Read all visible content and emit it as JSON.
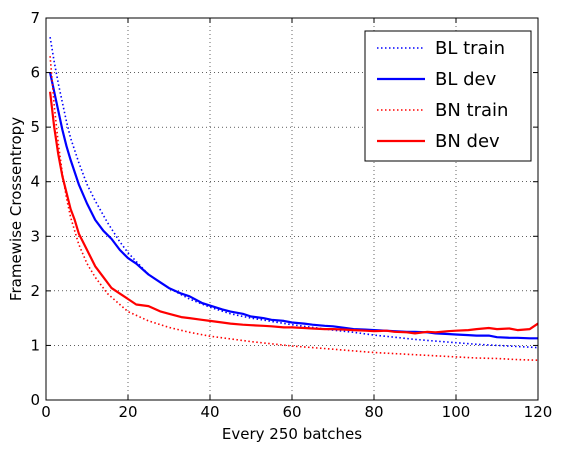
{
  "chart_data": {
    "type": "line",
    "title": "",
    "xlabel": "Every 250 batches",
    "ylabel": "Framewise Crossentropy",
    "xlim": [
      0,
      120
    ],
    "ylim": [
      0,
      7
    ],
    "xticks": [
      0,
      20,
      40,
      60,
      80,
      100,
      120
    ],
    "yticks": [
      0,
      1,
      2,
      3,
      4,
      5,
      6,
      7
    ],
    "grid": true,
    "legend_position": "top-right",
    "series": [
      {
        "name": "BL train",
        "color": "#0000ff",
        "style": "dotted",
        "x": [
          1,
          2,
          3,
          4,
          5,
          6,
          8,
          10,
          12,
          15,
          18,
          20,
          25,
          30,
          35,
          40,
          45,
          50,
          55,
          60,
          65,
          70,
          75,
          80,
          85,
          90,
          95,
          100,
          105,
          110,
          115,
          120
        ],
        "y": [
          6.65,
          6.2,
          5.8,
          5.45,
          5.1,
          4.8,
          4.35,
          3.95,
          3.65,
          3.25,
          2.9,
          2.7,
          2.3,
          2.05,
          1.85,
          1.7,
          1.58,
          1.5,
          1.44,
          1.38,
          1.33,
          1.28,
          1.24,
          1.19,
          1.15,
          1.11,
          1.08,
          1.05,
          1.02,
          1.0,
          0.98,
          0.96
        ]
      },
      {
        "name": "BL dev",
        "color": "#0000ff",
        "style": "solid",
        "x": [
          1,
          2,
          3,
          4,
          5,
          6,
          8,
          10,
          12,
          14,
          16,
          18,
          20,
          22,
          25,
          28,
          30,
          33,
          35,
          38,
          40,
          43,
          45,
          48,
          50,
          53,
          55,
          58,
          60,
          63,
          65,
          68,
          70,
          73,
          75,
          78,
          80,
          83,
          85,
          88,
          90,
          93,
          95,
          98,
          100,
          103,
          105,
          108,
          110,
          113,
          115,
          118,
          120
        ],
        "y": [
          6.0,
          5.65,
          5.3,
          4.95,
          4.65,
          4.4,
          3.95,
          3.6,
          3.3,
          3.1,
          2.95,
          2.75,
          2.6,
          2.5,
          2.3,
          2.15,
          2.05,
          1.95,
          1.9,
          1.78,
          1.73,
          1.66,
          1.62,
          1.58,
          1.53,
          1.5,
          1.47,
          1.45,
          1.42,
          1.4,
          1.38,
          1.36,
          1.35,
          1.32,
          1.3,
          1.29,
          1.28,
          1.27,
          1.26,
          1.25,
          1.25,
          1.24,
          1.22,
          1.21,
          1.2,
          1.19,
          1.18,
          1.18,
          1.15,
          1.14,
          1.14,
          1.13,
          1.13
        ]
      },
      {
        "name": "BN train",
        "color": "#ff0000",
        "style": "dotted",
        "x": [
          1,
          2,
          3,
          4,
          5,
          6,
          8,
          10,
          12,
          15,
          18,
          20,
          25,
          30,
          35,
          40,
          45,
          50,
          55,
          60,
          65,
          70,
          75,
          80,
          85,
          90,
          95,
          100,
          105,
          110,
          115,
          120
        ],
        "y": [
          6.3,
          5.4,
          4.7,
          4.15,
          3.7,
          3.35,
          2.85,
          2.5,
          2.25,
          1.95,
          1.75,
          1.62,
          1.45,
          1.33,
          1.24,
          1.17,
          1.12,
          1.07,
          1.03,
          0.99,
          0.96,
          0.93,
          0.9,
          0.87,
          0.85,
          0.83,
          0.81,
          0.79,
          0.77,
          0.76,
          0.74,
          0.73
        ]
      },
      {
        "name": "BN dev",
        "color": "#ff0000",
        "style": "solid",
        "x": [
          1,
          2,
          3,
          4,
          5,
          6,
          7,
          8,
          10,
          12,
          14,
          16,
          18,
          20,
          22,
          25,
          28,
          30,
          33,
          35,
          38,
          40,
          43,
          45,
          48,
          50,
          53,
          55,
          58,
          60,
          63,
          65,
          68,
          70,
          73,
          75,
          78,
          80,
          83,
          85,
          88,
          90,
          93,
          95,
          98,
          100,
          103,
          105,
          108,
          110,
          113,
          115,
          118,
          120
        ],
        "y": [
          5.65,
          5.0,
          4.5,
          4.1,
          3.8,
          3.5,
          3.3,
          3.05,
          2.75,
          2.45,
          2.25,
          2.05,
          1.95,
          1.85,
          1.75,
          1.72,
          1.62,
          1.58,
          1.52,
          1.5,
          1.47,
          1.45,
          1.42,
          1.4,
          1.38,
          1.37,
          1.36,
          1.35,
          1.33,
          1.33,
          1.32,
          1.31,
          1.3,
          1.3,
          1.29,
          1.28,
          1.27,
          1.26,
          1.27,
          1.25,
          1.24,
          1.22,
          1.25,
          1.24,
          1.26,
          1.27,
          1.28,
          1.3,
          1.32,
          1.3,
          1.31,
          1.28,
          1.3,
          1.4
        ]
      }
    ]
  }
}
